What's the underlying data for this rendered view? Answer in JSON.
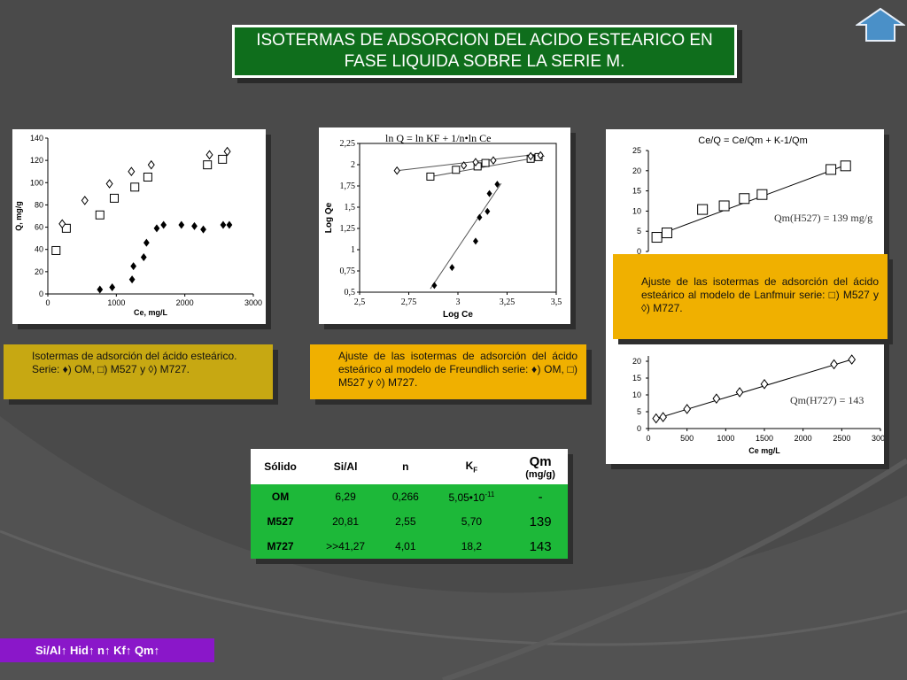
{
  "title": "ISOTERMAS DE ADSORCION DEL ACIDO ESTEARICO EN FASE LIQUIDA SOBRE LA SERIE  M.",
  "captions": {
    "isotherms": "Isotermas de adsorción del ácido esteárico. Serie: ♦) OM, □) M527 y ◊) M727.",
    "freundlich": "Ajuste de las isotermas de adsorción del ácido esteárico al modelo de Freundlich serie: ♦) OM, □) M527 y ◊) M727.",
    "langmuir": "Ajuste de las isotermas de adsorción del ácido esteárico al modelo de Lanfmuir serie: □) M527 y ◊) M727."
  },
  "table": {
    "headers": [
      "Sólido",
      "Si/Al",
      "n",
      "K",
      "Qm"
    ],
    "header_kf_sub": "F",
    "header_qm_unit": "(mg/g)",
    "rows": [
      {
        "solid": "OM",
        "sial": "6,29",
        "n": "0,266",
        "kf": "5,05•10",
        "kf_exp": "-11",
        "qm": "-"
      },
      {
        "solid": "M527",
        "sial": "20,81",
        "n": "2,55",
        "kf": "5,70",
        "kf_exp": "",
        "qm": "139"
      },
      {
        "solid": "M727",
        "sial": ">>41,27",
        "n": "4,01",
        "kf": "18,2",
        "kf_exp": "",
        "qm": "143"
      }
    ]
  },
  "bottom_bar": "Si/Al↑ Hid↑ n↑ Kf↑ Qm↑",
  "colors": {
    "title_bg": "#0f6e1c",
    "table_row": "#1db839",
    "caption_gold": "#c7a812",
    "caption_orange": "#f0b000",
    "bottom_bar": "#8a17c9",
    "home_btn": "#4a90c8"
  },
  "chart_data": [
    {
      "type": "scatter",
      "xlabel": "Ce, mg/L",
      "ylabel": "Q, mg/g",
      "xlim": [
        0,
        3000
      ],
      "ylim": [
        0,
        140
      ],
      "xticks": [
        0,
        1000,
        2000,
        3000
      ],
      "yticks": [
        0,
        20,
        40,
        60,
        80,
        100,
        120,
        140
      ],
      "series": [
        {
          "marker": "diamond-filled",
          "points": [
            [
              760,
              4
            ],
            [
              940,
              6
            ],
            [
              1230,
              13
            ],
            [
              1250,
              25
            ],
            [
              1400,
              33
            ],
            [
              1440,
              46
            ],
            [
              1590,
              59
            ],
            [
              1690,
              62
            ],
            [
              1950,
              62
            ],
            [
              2140,
              61
            ],
            [
              2270,
              58
            ],
            [
              2560,
              62
            ],
            [
              2650,
              62
            ]
          ]
        },
        {
          "marker": "square-open",
          "points": [
            [
              120,
              39
            ],
            [
              270,
              59
            ],
            [
              760,
              71
            ],
            [
              970,
              86
            ],
            [
              1270,
              96
            ],
            [
              1460,
              105
            ],
            [
              2330,
              116
            ],
            [
              2550,
              121
            ]
          ]
        },
        {
          "marker": "diamond-open",
          "points": [
            [
              210,
              63
            ],
            [
              540,
              84
            ],
            [
              900,
              99
            ],
            [
              1220,
              110
            ],
            [
              1510,
              116
            ],
            [
              2360,
              125
            ],
            [
              2620,
              128
            ]
          ]
        }
      ]
    },
    {
      "type": "scatter",
      "title": "ln Q = ln KF + 1/n•ln Ce",
      "xlabel": "Log Ce",
      "ylabel": "Log Qe",
      "xlim": [
        2.5,
        3.5
      ],
      "ylim": [
        0.5,
        2.25
      ],
      "xticks": [
        "2,5",
        "2,75",
        "3",
        "3,25",
        "3,5"
      ],
      "yticks": [
        "0,5",
        "0,75",
        "1",
        "1,25",
        "1,5",
        "1,75",
        "2",
        "2,25"
      ],
      "series": [
        {
          "marker": "diamond-filled",
          "points": [
            [
              2.88,
              0.58
            ],
            [
              2.97,
              0.79
            ],
            [
              3.09,
              1.1
            ],
            [
              3.11,
              1.38
            ],
            [
              3.15,
              1.45
            ],
            [
              3.16,
              1.66
            ],
            [
              3.2,
              1.77
            ]
          ]
        },
        {
          "marker": "square-open",
          "points": [
            [
              2.86,
              1.86
            ],
            [
              2.99,
              1.94
            ],
            [
              3.1,
              1.98
            ],
            [
              3.14,
              2.02
            ],
            [
              3.37,
              2.07
            ],
            [
              3.41,
              2.09
            ]
          ]
        },
        {
          "marker": "diamond-open",
          "points": [
            [
              2.69,
              1.93
            ],
            [
              3.03,
              1.99
            ],
            [
              3.09,
              2.03
            ],
            [
              3.18,
              2.05
            ],
            [
              3.37,
              2.1
            ],
            [
              3.42,
              2.11
            ]
          ]
        }
      ]
    },
    {
      "type": "scatter",
      "title": "Ce/Q = Ce/Qm + K-1/Qm",
      "annotation": "Qm(H527) = 139 mg/g",
      "ylim": [
        0,
        25
      ],
      "yticks": [
        0,
        5,
        10,
        15,
        20,
        25
      ],
      "series": [
        {
          "marker": "square-open",
          "points": [
            [
              110,
              3.5
            ],
            [
              240,
              4.6
            ],
            [
              700,
              10.4
            ],
            [
              980,
              11.3
            ],
            [
              1240,
              13.1
            ],
            [
              1470,
              14.1
            ],
            [
              2360,
              20.3
            ],
            [
              2550,
              21.2
            ]
          ]
        }
      ]
    },
    {
      "type": "scatter",
      "annotation": "Qm(H727) = 143",
      "xlabel": "Ce mg/L",
      "xlim": [
        0,
        3000
      ],
      "ylim": [
        0,
        20
      ],
      "xticks": [
        0,
        500,
        1000,
        1500,
        2000,
        2500,
        3000
      ],
      "yticks": [
        0,
        5,
        10,
        15,
        20
      ],
      "series": [
        {
          "marker": "diamond-open",
          "points": [
            [
              100,
              3
            ],
            [
              190,
              3.4
            ],
            [
              500,
              5.8
            ],
            [
              880,
              8.9
            ],
            [
              1180,
              10.8
            ],
            [
              1500,
              13.2
            ],
            [
              2400,
              19.1
            ],
            [
              2630,
              20.5
            ]
          ]
        }
      ]
    }
  ]
}
